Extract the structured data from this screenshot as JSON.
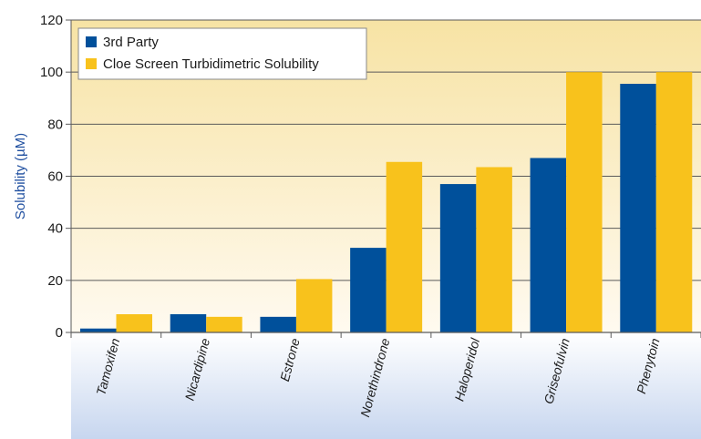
{
  "chart_data": {
    "type": "bar",
    "categories": [
      "Tamoxifen",
      "Nicardipine",
      "Estrone",
      "Norethindrone",
      "Haloperidol",
      "Griseofulvin",
      "Phenytoin"
    ],
    "series": [
      {
        "name": "3rd Party",
        "color": "#00509b",
        "values": [
          1.5,
          7,
          6,
          32.5,
          57,
          67,
          95.5
        ]
      },
      {
        "name": "Cloe Screen Turbidimetric Solubility",
        "color": "#f8c21c",
        "values": [
          7,
          6,
          20.5,
          65.5,
          63.5,
          100,
          100
        ]
      }
    ],
    "ylabel": "Solubility (µM)",
    "ylim": [
      0,
      120
    ],
    "yticks": [
      0,
      20,
      40,
      60,
      80,
      100,
      120
    ],
    "grid": true,
    "legend": "top-left",
    "colors": {
      "plot_gradient_top": "#f7e3a4",
      "plot_gradient_bottom": "#fffaf0",
      "label_band_top": "#ffffff",
      "label_band_bottom": "#c7d6ef",
      "ylabel": "#1f4fa0"
    }
  }
}
